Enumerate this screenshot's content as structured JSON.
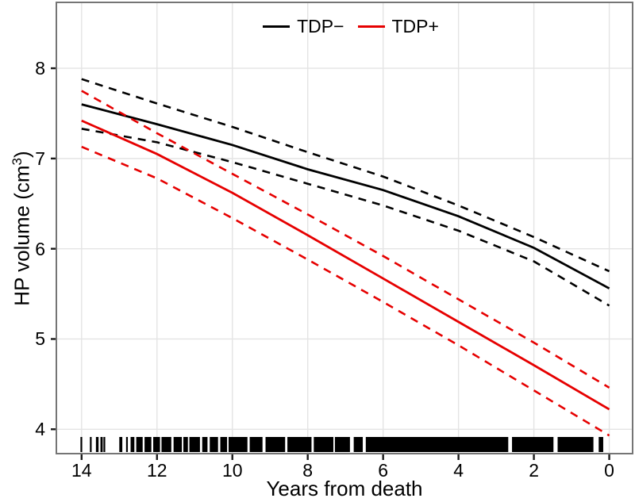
{
  "figure": {
    "background": "#FFFFFF",
    "panel_border_color": "#757575",
    "grid_color": "#E4E4E4",
    "tick_color": "#1A1A1A",
    "text_color": "#000000"
  },
  "axes": {
    "x": {
      "title": "Years from death",
      "ticks": [
        14,
        12,
        10,
        8,
        6,
        4,
        2,
        0
      ],
      "reversed": true
    },
    "y": {
      "label_main": "HP volume (cm",
      "label_sup": "3",
      "label_close": ")",
      "ticks": [
        8,
        7,
        6,
        5,
        4
      ]
    }
  },
  "legend": {
    "position": "top-center",
    "items": [
      {
        "key": "tdp-neg",
        "label": "TDP−",
        "color": "#000000"
      },
      {
        "key": "tdp-pos",
        "label": "TDP+",
        "color": "#E60000"
      }
    ]
  },
  "chart_data": {
    "type": "line",
    "title": "",
    "xlabel": "Years from death",
    "ylabel": "HP volume (cm³)",
    "x": [
      14,
      12,
      10,
      8,
      6,
      4,
      2,
      0
    ],
    "x_axis_reversed": true,
    "xlim": [
      14.67,
      -0.62
    ],
    "ylim": [
      3.73,
      8.73
    ],
    "grid": true,
    "legend_position": "top-center",
    "legend_entries": [
      "TDP−",
      "TDP+"
    ],
    "series": [
      {
        "key": "tdp-neg-fit",
        "name": "TDP− fit",
        "group": "TDP−",
        "color": "#000000",
        "style": "solid",
        "values": [
          7.6,
          7.38,
          7.15,
          6.88,
          6.65,
          6.36,
          6.01,
          5.56
        ]
      },
      {
        "key": "tdp-neg-upper",
        "name": "TDP− upper CI",
        "group": "TDP−",
        "color": "#000000",
        "style": "dashed",
        "values": [
          7.88,
          7.61,
          7.35,
          7.07,
          6.8,
          6.48,
          6.13,
          5.75
        ]
      },
      {
        "key": "tdp-neg-lower",
        "name": "TDP− lower CI",
        "group": "TDP−",
        "color": "#000000",
        "style": "dashed",
        "values": [
          7.33,
          7.18,
          6.96,
          6.72,
          6.48,
          6.2,
          5.86,
          5.37
        ]
      },
      {
        "key": "tdp-pos-fit",
        "name": "TDP+ fit",
        "group": "TDP+",
        "color": "#E60000",
        "style": "solid",
        "values": [
          7.42,
          7.05,
          6.62,
          6.15,
          5.67,
          5.19,
          4.71,
          4.22
        ]
      },
      {
        "key": "tdp-pos-upper",
        "name": "TDP+ upper CI",
        "group": "TDP+",
        "color": "#E60000",
        "style": "dashed",
        "values": [
          7.75,
          7.28,
          6.83,
          6.38,
          5.92,
          5.44,
          4.96,
          4.46
        ]
      },
      {
        "key": "tdp-pos-lower",
        "name": "TDP+ lower CI",
        "group": "TDP+",
        "color": "#E60000",
        "style": "dashed",
        "values": [
          7.13,
          6.78,
          6.34,
          5.88,
          5.41,
          4.93,
          4.43,
          3.93
        ]
      }
    ],
    "rug": {
      "axis": "x",
      "color": "#000000",
      "segments_years": [
        [
          14.03,
          13.99
        ],
        [
          13.78,
          13.74
        ],
        [
          13.62,
          13.55
        ],
        [
          13.5,
          13.44
        ],
        [
          13.42,
          13.38
        ],
        [
          13.0,
          12.92
        ],
        [
          12.82,
          12.78
        ],
        [
          12.7,
          12.6
        ],
        [
          12.55,
          12.38
        ],
        [
          12.33,
          12.15
        ],
        [
          12.1,
          11.92
        ],
        [
          11.88,
          11.62
        ],
        [
          11.56,
          11.34
        ],
        [
          11.3,
          11.18
        ],
        [
          11.14,
          10.86
        ],
        [
          10.8,
          10.66
        ],
        [
          10.6,
          10.38
        ],
        [
          10.32,
          10.14
        ],
        [
          10.1,
          9.6
        ],
        [
          9.54,
          9.2
        ],
        [
          9.12,
          8.6
        ],
        [
          8.54,
          7.9
        ],
        [
          7.84,
          7.32
        ],
        [
          7.28,
          6.88
        ],
        [
          6.78,
          6.54
        ],
        [
          6.46,
          2.68
        ],
        [
          2.58,
          1.48
        ],
        [
          1.37,
          0.42
        ],
        [
          0.28,
          0.16
        ]
      ]
    }
  }
}
